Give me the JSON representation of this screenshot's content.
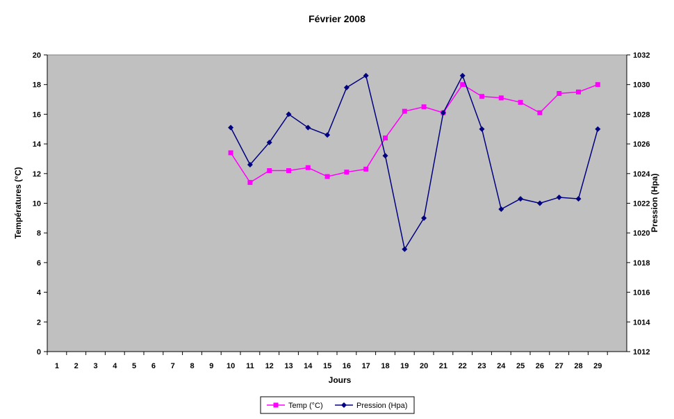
{
  "chart_data": {
    "type": "line",
    "title": "Février 2008",
    "xlabel": "Jours",
    "ylabel_left": "Températures (°C)",
    "ylabel_right": "Pression (Hpa)",
    "categories": [
      "1",
      "2",
      "3",
      "4",
      "5",
      "6",
      "7",
      "8",
      "9",
      "10",
      "11",
      "12",
      "13",
      "14",
      "15",
      "16",
      "17",
      "18",
      "19",
      "20",
      "21",
      "22",
      "23",
      "24",
      "25",
      "26",
      "27",
      "28",
      "29"
    ],
    "y_left_range": [
      0,
      20
    ],
    "y_left_ticks": [
      "0",
      "2",
      "4",
      "6",
      "8",
      "10",
      "12",
      "14",
      "16",
      "18",
      "20"
    ],
    "y_right_range": [
      1012,
      1032
    ],
    "y_right_ticks": [
      "1012",
      "1014",
      "1016",
      "1018",
      "1020",
      "1022",
      "1024",
      "1026",
      "1028",
      "1030",
      "1032"
    ],
    "grid": false,
    "plot_background": "#c0c0c0",
    "legend_position": "bottom",
    "series": [
      {
        "name": "Temp (°C)",
        "axis": "left",
        "color": "#ff00ff",
        "marker": "square",
        "values": [
          null,
          null,
          null,
          null,
          null,
          null,
          null,
          null,
          null,
          13.4,
          11.4,
          12.2,
          12.2,
          12.4,
          11.8,
          12.1,
          12.3,
          14.4,
          16.2,
          16.5,
          16.1,
          18.0,
          17.2,
          17.1,
          16.8,
          16.1,
          17.4,
          17.5,
          18.0
        ]
      },
      {
        "name": "Pression (Hpa)",
        "axis": "right",
        "color": "#000080",
        "marker": "diamond",
        "values": [
          null,
          null,
          null,
          null,
          null,
          null,
          null,
          null,
          null,
          1027.1,
          1024.6,
          1026.1,
          1028.0,
          1027.1,
          1026.6,
          1029.8,
          1030.6,
          1025.2,
          1018.9,
          1021.0,
          1028.1,
          1030.6,
          1027.0,
          1021.6,
          1022.3,
          1022.0,
          1022.4,
          1022.3,
          1027.0
        ]
      }
    ]
  }
}
